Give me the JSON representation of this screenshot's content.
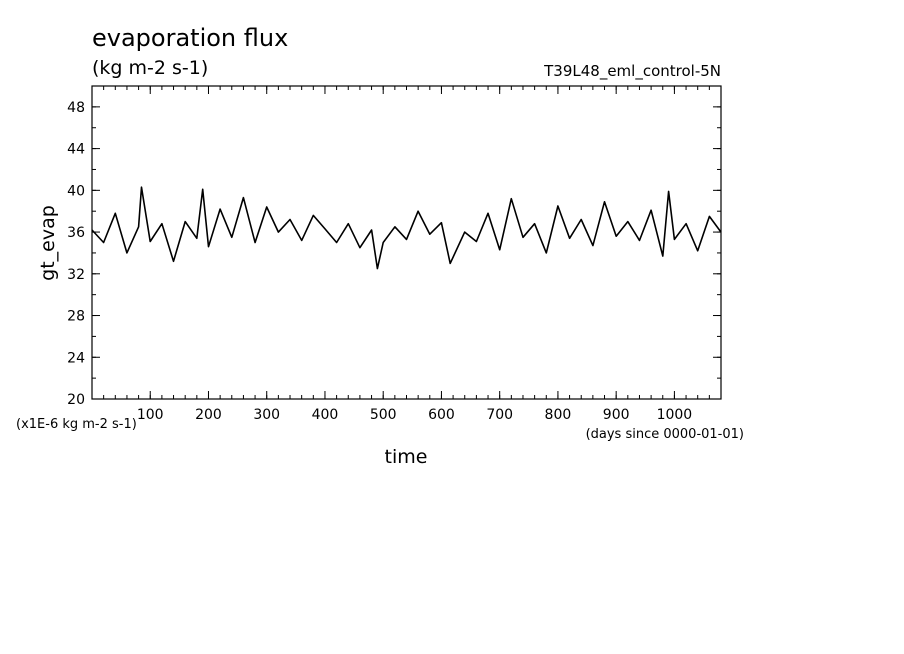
{
  "chart_data": {
    "type": "line",
    "title": "evaporation flux",
    "subtitle": "(kg m-2 s-1)",
    "run_label": "T39L48_eml_control-5N",
    "xlabel": "time",
    "x_units": "(days since 0000-01-01)",
    "ylabel": "gt_evap",
    "y_units": "(x1E-6 kg m-2 s-1)",
    "xlim": [
      0,
      1080
    ],
    "ylim": [
      20,
      50
    ],
    "x_ticks": [
      100,
      200,
      300,
      400,
      500,
      600,
      700,
      800,
      900,
      1000
    ],
    "y_ticks": [
      20,
      24,
      28,
      32,
      36,
      40,
      44,
      48
    ],
    "grid": false,
    "series": [
      {
        "color": "#000000",
        "x": [
          0,
          20,
          40,
          60,
          80,
          85,
          100,
          120,
          140,
          160,
          180,
          190,
          200,
          220,
          240,
          260,
          280,
          300,
          320,
          340,
          360,
          380,
          400,
          420,
          440,
          460,
          480,
          490,
          500,
          520,
          540,
          560,
          580,
          600,
          615,
          640,
          660,
          680,
          700,
          720,
          740,
          760,
          780,
          800,
          820,
          840,
          860,
          880,
          900,
          920,
          940,
          960,
          980,
          990,
          1000,
          1020,
          1040,
          1060,
          1080
        ],
        "values": [
          36.2,
          35.0,
          37.8,
          34.0,
          36.5,
          40.3,
          35.1,
          36.8,
          33.2,
          37.0,
          35.4,
          40.1,
          34.6,
          38.2,
          35.5,
          39.3,
          35.0,
          38.4,
          36.0,
          37.2,
          35.2,
          37.6,
          36.3,
          35.0,
          36.8,
          34.5,
          36.2,
          32.5,
          35.0,
          36.5,
          35.3,
          38.0,
          35.8,
          36.9,
          33.0,
          36.0,
          35.1,
          37.8,
          34.3,
          39.2,
          35.5,
          36.8,
          34.0,
          38.5,
          35.4,
          37.2,
          34.7,
          38.9,
          35.6,
          37.0,
          35.2,
          38.1,
          33.7,
          39.9,
          35.3,
          36.8,
          34.2,
          37.5,
          36.0
        ]
      }
    ]
  }
}
